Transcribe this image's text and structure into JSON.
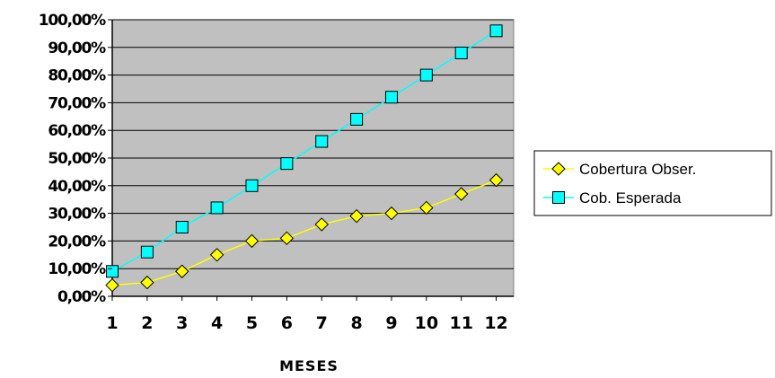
{
  "chart_data": {
    "type": "line",
    "title": "",
    "xlabel": "MESES",
    "ylabel": "",
    "x": [
      "1",
      "2",
      "3",
      "4",
      "5",
      "6",
      "7",
      "8",
      "9",
      "10",
      "11",
      "12"
    ],
    "y_ticks": [
      "0,00%",
      "10,00%",
      "20,00%",
      "30,00%",
      "40,00%",
      "50,00%",
      "60,00%",
      "70,00%",
      "80,00%",
      "90,00%",
      "100,00%"
    ],
    "ylim": [
      0,
      100
    ],
    "grid": true,
    "legend_position": "right",
    "plot_background": "#c0c0c0",
    "series": [
      {
        "name": "Cobertura Obser.",
        "marker": "diamond",
        "line_color": "#ffff00",
        "marker_fill": "#ffff00",
        "values": [
          4,
          5,
          9,
          15,
          20,
          21,
          26,
          29,
          30,
          32,
          37,
          42
        ]
      },
      {
        "name": "Cob. Esperada",
        "marker": "square",
        "line_color": "#00ffff",
        "marker_fill": "#00ffff",
        "values": [
          9,
          16,
          25,
          32,
          40,
          48,
          56,
          64,
          72,
          80,
          88,
          96
        ]
      }
    ]
  }
}
